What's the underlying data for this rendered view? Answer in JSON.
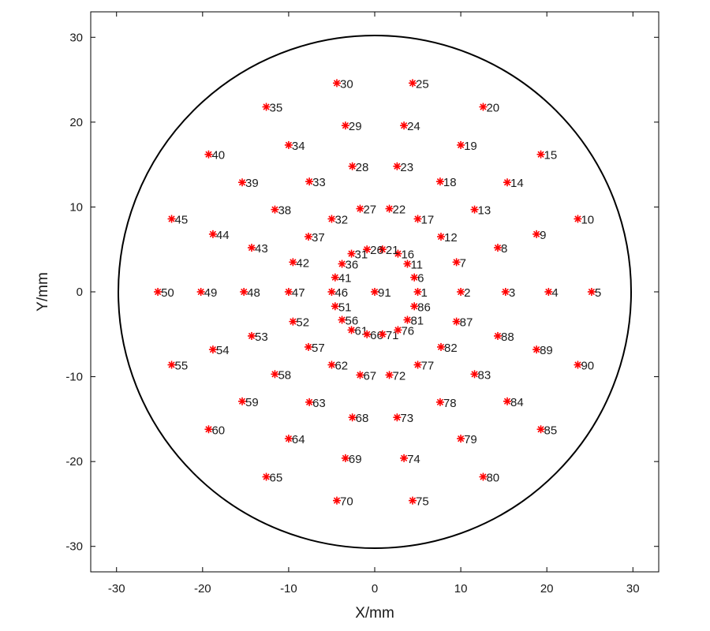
{
  "chart_data": {
    "type": "scatter",
    "xlabel": "X/mm",
    "ylabel": "Y/mm",
    "xlim": [
      -33,
      33
    ],
    "ylim": [
      -33,
      33
    ],
    "xticks": [
      -30,
      -20,
      -10,
      0,
      10,
      20,
      30
    ],
    "yticks": [
      -30,
      -20,
      -10,
      0,
      10,
      20,
      30
    ],
    "grid": false,
    "marker": "asterisk",
    "marker_color": "#ff0000",
    "boundary_circle": {
      "center": [
        0,
        0
      ],
      "radius": 30,
      "color": "#000000"
    },
    "points": [
      {
        "label": "1",
        "x": 5.0,
        "y": 0.0
      },
      {
        "label": "2",
        "x": 10.0,
        "y": 0.0
      },
      {
        "label": "3",
        "x": 15.2,
        "y": 0.0
      },
      {
        "label": "4",
        "x": 20.2,
        "y": 0.0
      },
      {
        "label": "5",
        "x": 25.2,
        "y": 0.0
      },
      {
        "label": "6",
        "x": 4.6,
        "y": 1.7
      },
      {
        "label": "7",
        "x": 9.5,
        "y": 3.5
      },
      {
        "label": "8",
        "x": 14.3,
        "y": 5.2
      },
      {
        "label": "9",
        "x": 18.8,
        "y": 6.8
      },
      {
        "label": "10",
        "x": 23.6,
        "y": 8.6
      },
      {
        "label": "11",
        "x": 3.8,
        "y": 3.3
      },
      {
        "label": "12",
        "x": 7.7,
        "y": 6.5
      },
      {
        "label": "13",
        "x": 11.6,
        "y": 9.7
      },
      {
        "label": "14",
        "x": 15.4,
        "y": 12.9
      },
      {
        "label": "15",
        "x": 19.3,
        "y": 16.2
      },
      {
        "label": "16",
        "x": 2.7,
        "y": 4.5
      },
      {
        "label": "17",
        "x": 5.0,
        "y": 8.6
      },
      {
        "label": "18",
        "x": 7.6,
        "y": 13.0
      },
      {
        "label": "19",
        "x": 10.0,
        "y": 17.3
      },
      {
        "label": "20",
        "x": 12.6,
        "y": 21.8
      },
      {
        "label": "21",
        "x": 0.9,
        "y": 5.0
      },
      {
        "label": "22",
        "x": 1.7,
        "y": 9.8
      },
      {
        "label": "23",
        "x": 2.6,
        "y": 14.8
      },
      {
        "label": "24",
        "x": 3.4,
        "y": 19.6
      },
      {
        "label": "25",
        "x": 4.4,
        "y": 24.6
      },
      {
        "label": "26",
        "x": -0.9,
        "y": 5.0
      },
      {
        "label": "27",
        "x": -1.7,
        "y": 9.8
      },
      {
        "label": "28",
        "x": -2.6,
        "y": 14.8
      },
      {
        "label": "29",
        "x": -3.4,
        "y": 19.6
      },
      {
        "label": "30",
        "x": -4.4,
        "y": 24.6
      },
      {
        "label": "31",
        "x": -2.7,
        "y": 4.5
      },
      {
        "label": "32",
        "x": -5.0,
        "y": 8.6
      },
      {
        "label": "33",
        "x": -7.6,
        "y": 13.0
      },
      {
        "label": "34",
        "x": -10.0,
        "y": 17.3
      },
      {
        "label": "35",
        "x": -12.6,
        "y": 21.8
      },
      {
        "label": "36",
        "x": -3.8,
        "y": 3.3
      },
      {
        "label": "37",
        "x": -7.7,
        "y": 6.5
      },
      {
        "label": "38",
        "x": -11.6,
        "y": 9.7
      },
      {
        "label": "39",
        "x": -15.4,
        "y": 12.9
      },
      {
        "label": "40",
        "x": -19.3,
        "y": 16.2
      },
      {
        "label": "41",
        "x": -4.6,
        "y": 1.7
      },
      {
        "label": "42",
        "x": -9.5,
        "y": 3.5
      },
      {
        "label": "43",
        "x": -14.3,
        "y": 5.2
      },
      {
        "label": "44",
        "x": -18.8,
        "y": 6.8
      },
      {
        "label": "45",
        "x": -23.6,
        "y": 8.6
      },
      {
        "label": "46",
        "x": -5.0,
        "y": 0.0
      },
      {
        "label": "47",
        "x": -10.0,
        "y": 0.0
      },
      {
        "label": "48",
        "x": -15.2,
        "y": 0.0
      },
      {
        "label": "49",
        "x": -20.2,
        "y": 0.0
      },
      {
        "label": "50",
        "x": -25.2,
        "y": 0.0
      },
      {
        "label": "51",
        "x": -4.6,
        "y": -1.7
      },
      {
        "label": "52",
        "x": -9.5,
        "y": -3.5
      },
      {
        "label": "53",
        "x": -14.3,
        "y": -5.2
      },
      {
        "label": "54",
        "x": -18.8,
        "y": -6.8
      },
      {
        "label": "55",
        "x": -23.6,
        "y": -8.6
      },
      {
        "label": "56",
        "x": -3.8,
        "y": -3.3
      },
      {
        "label": "57",
        "x": -7.7,
        "y": -6.5
      },
      {
        "label": "58",
        "x": -11.6,
        "y": -9.7
      },
      {
        "label": "59",
        "x": -15.4,
        "y": -12.9
      },
      {
        "label": "60",
        "x": -19.3,
        "y": -16.2
      },
      {
        "label": "61",
        "x": -2.7,
        "y": -4.5
      },
      {
        "label": "62",
        "x": -5.0,
        "y": -8.6
      },
      {
        "label": "63",
        "x": -7.6,
        "y": -13.0
      },
      {
        "label": "64",
        "x": -10.0,
        "y": -17.3
      },
      {
        "label": "65",
        "x": -12.6,
        "y": -21.8
      },
      {
        "label": "66",
        "x": -0.9,
        "y": -5.0
      },
      {
        "label": "67",
        "x": -1.7,
        "y": -9.8
      },
      {
        "label": "68",
        "x": -2.6,
        "y": -14.8
      },
      {
        "label": "69",
        "x": -3.4,
        "y": -19.6
      },
      {
        "label": "70",
        "x": -4.4,
        "y": -24.6
      },
      {
        "label": "71",
        "x": 0.9,
        "y": -5.0
      },
      {
        "label": "72",
        "x": 1.7,
        "y": -9.8
      },
      {
        "label": "73",
        "x": 2.6,
        "y": -14.8
      },
      {
        "label": "74",
        "x": 3.4,
        "y": -19.6
      },
      {
        "label": "75",
        "x": 4.4,
        "y": -24.6
      },
      {
        "label": "76",
        "x": 2.7,
        "y": -4.5
      },
      {
        "label": "77",
        "x": 5.0,
        "y": -8.6
      },
      {
        "label": "78",
        "x": 7.6,
        "y": -13.0
      },
      {
        "label": "79",
        "x": 10.0,
        "y": -17.3
      },
      {
        "label": "80",
        "x": 12.6,
        "y": -21.8
      },
      {
        "label": "81",
        "x": 3.8,
        "y": -3.3
      },
      {
        "label": "82",
        "x": 7.7,
        "y": -6.5
      },
      {
        "label": "83",
        "x": 11.6,
        "y": -9.7
      },
      {
        "label": "84",
        "x": 15.4,
        "y": -12.9
      },
      {
        "label": "85",
        "x": 19.3,
        "y": -16.2
      },
      {
        "label": "86",
        "x": 4.6,
        "y": -1.7
      },
      {
        "label": "87",
        "x": 9.5,
        "y": -3.5
      },
      {
        "label": "88",
        "x": 14.3,
        "y": -5.2
      },
      {
        "label": "89",
        "x": 18.8,
        "y": -6.8
      },
      {
        "label": "90",
        "x": 23.6,
        "y": -8.6
      },
      {
        "label": "91",
        "x": 0.0,
        "y": 0.0
      }
    ]
  }
}
